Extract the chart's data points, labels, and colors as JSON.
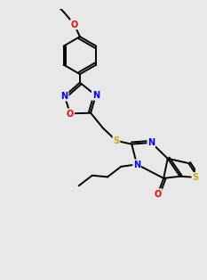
{
  "bg_color": "#e8e8e8",
  "bond_color": "#000000",
  "atom_colors": {
    "N": "#0000ff",
    "O": "#ff0000",
    "S": "#ccaa00",
    "C": "#000000"
  },
  "lw": 1.4,
  "fs": 7.0,
  "xlim": [
    0,
    10
  ],
  "ylim": [
    0,
    14
  ]
}
